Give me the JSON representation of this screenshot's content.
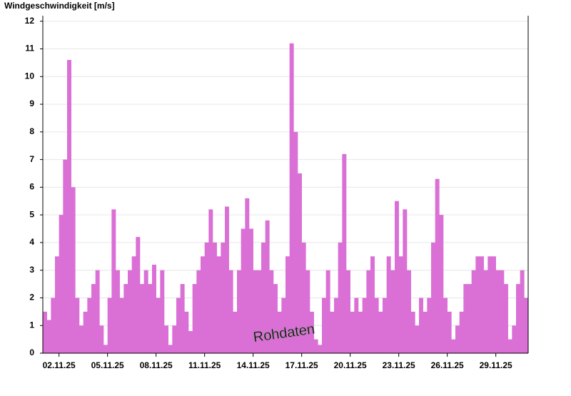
{
  "chart_data": {
    "type": "bar",
    "title": "Windgeschwindigkeit [m/s]",
    "annotation": "Rohdaten",
    "color": "#da6fd6",
    "grid": true,
    "categories": [
      null,
      null,
      null,
      null,
      "02.11.25",
      null,
      null,
      null,
      null,
      null,
      null,
      null,
      null,
      null,
      null,
      null,
      "05.11.25",
      null,
      null,
      null,
      null,
      null,
      null,
      null,
      null,
      null,
      null,
      null,
      "08.11.25",
      null,
      null,
      null,
      null,
      null,
      null,
      null,
      null,
      null,
      null,
      null,
      "11.11.25",
      null,
      null,
      null,
      null,
      null,
      null,
      null,
      null,
      null,
      null,
      null,
      "14.11.25",
      null,
      null,
      null,
      null,
      null,
      null,
      null,
      null,
      null,
      null,
      null,
      "17.11.25",
      null,
      null,
      null,
      null,
      null,
      null,
      null,
      null,
      null,
      null,
      null,
      "20.11.25",
      null,
      null,
      null,
      null,
      null,
      null,
      null,
      null,
      null,
      null,
      null,
      "23.11.25",
      null,
      null,
      null,
      null,
      null,
      null,
      null,
      null,
      null,
      null,
      null,
      "26.11.25",
      null,
      null,
      null,
      null,
      null,
      null,
      null,
      null,
      null,
      null,
      null,
      "29.11.25",
      null,
      null,
      null,
      null,
      null,
      null,
      null
    ],
    "values": [
      1.5,
      1.2,
      2,
      3.5,
      5,
      7,
      10.6,
      6,
      2,
      1,
      1.5,
      2,
      2.5,
      3,
      1,
      0.3,
      2,
      5.2,
      3,
      2,
      2.5,
      3,
      3.5,
      4.2,
      2.5,
      3,
      2.5,
      3.2,
      2,
      3,
      1,
      0.3,
      1,
      2,
      2.5,
      1.5,
      0.8,
      2.5,
      3,
      3.5,
      4,
      5.2,
      4,
      3.5,
      4,
      5.3,
      3,
      1.5,
      3,
      4.5,
      5.6,
      4.5,
      3,
      3,
      4,
      4.8,
      3,
      2.5,
      1.5,
      2,
      3.5,
      11.2,
      8,
      6.5,
      4,
      3,
      1.5,
      0.5,
      0.3,
      2,
      3,
      1.5,
      2,
      4,
      7.2,
      3,
      1.5,
      2,
      1.5,
      2,
      3,
      3.5,
      2,
      1.5,
      2,
      3.5,
      3,
      5.5,
      3.5,
      5.2,
      3,
      1.5,
      1,
      2,
      1.5,
      2,
      4,
      6.3,
      5,
      2,
      1.5,
      0.5,
      1,
      1.5,
      2.5,
      2.5,
      3,
      3.5,
      3.5,
      3,
      3.5,
      3.5,
      3,
      3,
      2.5,
      0.5,
      1,
      2.5,
      3,
      2
    ],
    "ylim": [
      0,
      12.2
    ],
    "yticks": [
      0,
      1,
      2,
      3,
      4,
      5,
      6,
      7,
      8,
      9,
      10,
      11,
      12
    ]
  }
}
